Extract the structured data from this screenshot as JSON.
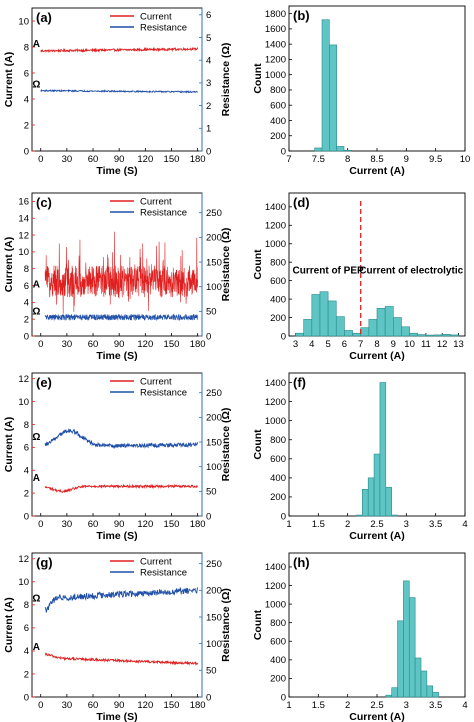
{
  "colors": {
    "current": "#e02020",
    "resistance": "#1f4fa8",
    "resistance_axis": "#2f6fc0",
    "bar_fill": "#5ec4c4",
    "bar_stroke": "#2a8a8a",
    "divider": "#e02020"
  },
  "chart_data": [
    {
      "id": "a",
      "type": "line",
      "panel_label": "(a)",
      "xlabel": "Time (S)",
      "ylabel": "Current (A)",
      "y2label": "Resistance (Ω)",
      "xlim": [
        -10,
        185
      ],
      "xticks": [
        0,
        30,
        60,
        90,
        120,
        150,
        180
      ],
      "ylim": [
        0,
        11
      ],
      "yticks": [
        0,
        2,
        4,
        6,
        8,
        10
      ],
      "y2lim": [
        0,
        6.3
      ],
      "y2ticks": [
        0,
        1,
        2,
        3,
        4,
        5,
        6
      ],
      "series": [
        {
          "name": "Current",
          "axis": "left",
          "x_start": 0,
          "x_end": 180,
          "mean_start": 7.7,
          "mean_end": 7.85,
          "noise": 0.08,
          "amp": 0,
          "bump": 0,
          "bump_at": 0,
          "bump_w": 1,
          "spike_rate": 0,
          "spike_amp": 0
        },
        {
          "name": "Resistance",
          "axis": "right",
          "x_start": 0,
          "x_end": 180,
          "mean_start": 2.66,
          "mean_end": 2.6,
          "noise": 0.03,
          "amp": 0,
          "bump": 0,
          "bump_at": 0,
          "bump_w": 1,
          "spike_rate": 0,
          "spike_amp": 0
        }
      ],
      "annotations": [
        {
          "text": "A",
          "x": -5,
          "y": 7.85,
          "axis": "left"
        },
        {
          "text": "Ω",
          "x": -5,
          "y": 2.7,
          "axis": "right"
        }
      ]
    },
    {
      "id": "b",
      "type": "bar",
      "panel_label": "(b)",
      "xlabel": "Current (A)",
      "ylabel": "Count",
      "xlim": [
        7,
        10
      ],
      "xticks": [
        7,
        7.5,
        8,
        8.5,
        9,
        9.5,
        10
      ],
      "ylim": [
        0,
        1900
      ],
      "yticks": [
        0,
        200,
        400,
        600,
        800,
        1000,
        1200,
        1400,
        1600,
        1800
      ],
      "bin_width": 0.125,
      "bins": [
        7.5,
        7.625,
        7.75,
        7.875,
        8.0
      ],
      "counts": [
        40,
        1720,
        1390,
        60,
        10
      ]
    },
    {
      "id": "c",
      "type": "line",
      "panel_label": "(c)",
      "xlabel": "Time (S)",
      "ylabel": "Current (A)",
      "y2label": "Resistance (Ω)",
      "xlim": [
        -10,
        185
      ],
      "xticks": [
        0,
        30,
        60,
        90,
        120,
        150,
        180
      ],
      "ylim": [
        0,
        17
      ],
      "yticks": [
        0,
        2,
        4,
        6,
        8,
        10,
        12,
        14,
        16
      ],
      "y2lim": [
        0,
        290
      ],
      "y2ticks": [
        0,
        50,
        100,
        150,
        200,
        250
      ],
      "series": [
        {
          "name": "Current",
          "axis": "left",
          "x_start": 5,
          "x_end": 180,
          "mean_start": 6.5,
          "mean_end": 6.5,
          "noise": 1.9,
          "amp": 0,
          "bump": 0,
          "bump_at": 0,
          "bump_w": 1,
          "spike_rate": 0.06,
          "spike_amp": 4.5
        },
        {
          "name": "Resistance",
          "axis": "right",
          "x_start": 5,
          "x_end": 180,
          "mean_start": 38,
          "mean_end": 38,
          "noise": 6,
          "amp": 0,
          "bump": 0,
          "bump_at": 0,
          "bump_w": 1,
          "spike_rate": 0,
          "spike_amp": 0
        }
      ],
      "annotations": [
        {
          "text": "A",
          "x": -5,
          "y": 5.5,
          "axis": "left"
        },
        {
          "text": "Ω",
          "x": -5,
          "y": 40,
          "axis": "right"
        }
      ]
    },
    {
      "id": "d",
      "type": "bar",
      "panel_label": "(d)",
      "xlabel": "Current (A)",
      "ylabel": "Count",
      "xlim": [
        2.6,
        13.4
      ],
      "xticks": [
        3,
        4,
        5,
        6,
        7,
        8,
        9,
        10,
        11,
        12,
        13
      ],
      "ylim": [
        0,
        1550
      ],
      "yticks": [
        0,
        200,
        400,
        600,
        800,
        1000,
        1200,
        1400
      ],
      "bin_width": 0.5,
      "bins": [
        3.25,
        3.75,
        4.25,
        4.75,
        5.25,
        5.75,
        6.25,
        6.75,
        7.25,
        7.75,
        8.25,
        8.75,
        9.25,
        9.75,
        10.25,
        10.75,
        11.25,
        11.75,
        12.25,
        12.75
      ],
      "counts": [
        30,
        180,
        450,
        480,
        380,
        210,
        60,
        30,
        90,
        180,
        300,
        320,
        200,
        100,
        30,
        15,
        10,
        12,
        18,
        12
      ],
      "divider_x": 7,
      "annotations": [
        {
          "text": "Current of PEP",
          "x": 5.0,
          "y": 680
        },
        {
          "text": "Current of electrolytic",
          "x": 10.1,
          "y": 680
        }
      ]
    },
    {
      "id": "e",
      "type": "line",
      "panel_label": "(e)",
      "xlabel": "Time (S)",
      "ylabel": "Current (A)",
      "y2label": "Resistance (Ω)",
      "xlim": [
        -10,
        185
      ],
      "xticks": [
        0,
        30,
        60,
        90,
        120,
        150,
        180
      ],
      "ylim": [
        0,
        12.5
      ],
      "yticks": [
        0,
        2,
        4,
        6,
        8,
        10,
        12
      ],
      "y2lim": [
        0,
        290
      ],
      "y2ticks": [
        0,
        50,
        100,
        150,
        200,
        250
      ],
      "series": [
        {
          "name": "Current",
          "axis": "left",
          "x_start": 5,
          "x_end": 180,
          "mean_start": 2.6,
          "mean_end": 2.6,
          "noise": 0.1,
          "amp": 0,
          "bump": -0.45,
          "bump_at": 25,
          "bump_w": 15,
          "spike_rate": 0,
          "spike_amp": 0
        },
        {
          "name": "Resistance",
          "axis": "right",
          "x_start": 5,
          "x_end": 180,
          "mean_start": 140,
          "mean_end": 145,
          "noise": 4,
          "amp": 0,
          "bump": 32,
          "bump_at": 33,
          "bump_w": 20,
          "spike_rate": 0,
          "spike_amp": 0
        }
      ],
      "annotations": [
        {
          "text": "A",
          "x": -5,
          "y": 2.9,
          "axis": "left"
        },
        {
          "text": "Ω",
          "x": -5,
          "y": 150,
          "axis": "right"
        }
      ]
    },
    {
      "id": "f",
      "type": "bar",
      "panel_label": "(f)",
      "xlabel": "Current (A)",
      "ylabel": "Count",
      "xlim": [
        1,
        4
      ],
      "xticks": [
        1,
        1.5,
        2,
        2.5,
        3,
        3.5,
        4
      ],
      "ylim": [
        0,
        1500
      ],
      "yticks": [
        0,
        200,
        400,
        600,
        800,
        1000,
        1200,
        1400
      ],
      "bin_width": 0.1,
      "bins": [
        2.2,
        2.3,
        2.4,
        2.5,
        2.6,
        2.7,
        2.8
      ],
      "counts": [
        10,
        280,
        400,
        650,
        1400,
        300,
        10
      ]
    },
    {
      "id": "g",
      "type": "line",
      "panel_label": "(g)",
      "xlabel": "Time (S)",
      "ylabel": "Current (A)",
      "y2label": "Resistance (Ω)",
      "xlim": [
        -10,
        185
      ],
      "xticks": [
        0,
        30,
        60,
        90,
        120,
        150,
        180
      ],
      "ylim": [
        0,
        12.5
      ],
      "yticks": [
        0,
        2,
        4,
        6,
        8,
        10,
        12
      ],
      "y2lim": [
        0,
        270
      ],
      "y2ticks": [
        0,
        50,
        100,
        150,
        200,
        250
      ],
      "series": [
        {
          "name": "Current",
          "axis": "left",
          "x_start": 5,
          "x_end": 180,
          "mean_start": 3.4,
          "mean_end": 2.9,
          "noise": 0.1,
          "amp": 0,
          "bump": 0.3,
          "bump_at": 5,
          "bump_w": 12,
          "spike_rate": 0,
          "spike_amp": 0
        },
        {
          "name": "Resistance",
          "axis": "right",
          "x_start": 5,
          "x_end": 180,
          "mean_start": 185,
          "mean_end": 200,
          "noise": 6,
          "amp": 0,
          "bump": -22,
          "bump_at": 5,
          "bump_w": 8,
          "spike_rate": 0,
          "spike_amp": 0
        }
      ],
      "annotations": [
        {
          "text": "A",
          "x": -5,
          "y": 3.9,
          "axis": "left"
        },
        {
          "text": "Ω",
          "x": -5,
          "y": 175,
          "axis": "right"
        }
      ]
    },
    {
      "id": "h",
      "type": "bar",
      "panel_label": "(h)",
      "xlabel": "Current (A)",
      "ylabel": "Count",
      "xlim": [
        1,
        4
      ],
      "xticks": [
        1,
        1.5,
        2,
        2.5,
        3,
        3.5,
        4
      ],
      "ylim": [
        0,
        1550
      ],
      "yticks": [
        0,
        200,
        400,
        600,
        800,
        1000,
        1200,
        1400
      ],
      "bin_width": 0.1,
      "bins": [
        2.7,
        2.8,
        2.9,
        3.0,
        3.1,
        3.2,
        3.3,
        3.4,
        3.5
      ],
      "counts": [
        20,
        100,
        820,
        1250,
        1070,
        420,
        280,
        120,
        50
      ]
    }
  ]
}
